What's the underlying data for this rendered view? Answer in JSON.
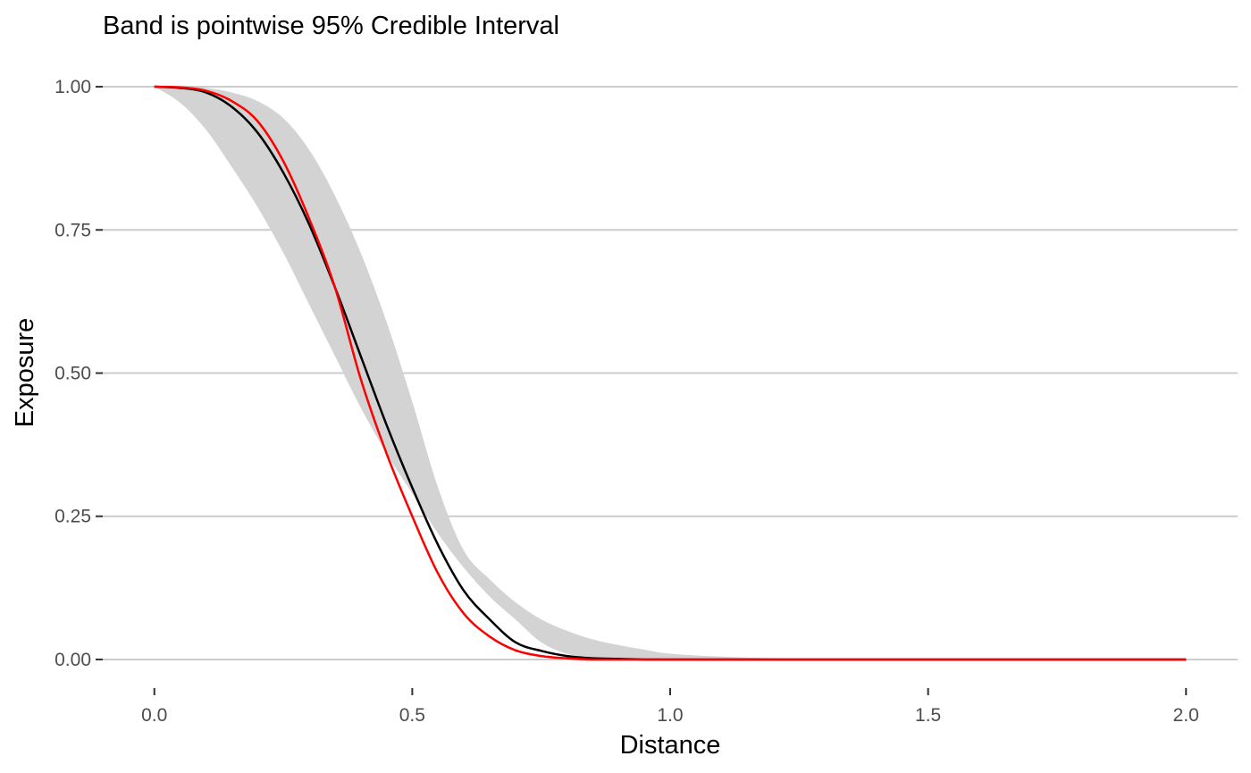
{
  "chart_data": {
    "type": "line",
    "title": "Band is pointwise 95% Credible Interval",
    "xlabel": "Distance",
    "ylabel": "Exposure",
    "xlim": [
      -0.1,
      2.1
    ],
    "ylim": [
      -0.05,
      1.05
    ],
    "x_ticks": [
      0.0,
      0.5,
      1.0,
      1.5,
      2.0
    ],
    "x_tick_labels": [
      "0.0",
      "0.5",
      "1.0",
      "1.5",
      "2.0"
    ],
    "y_ticks": [
      0.0,
      0.25,
      0.5,
      0.75,
      1.0
    ],
    "y_tick_labels": [
      "0.00",
      "0.25",
      "0.50",
      "0.75",
      "1.00"
    ],
    "grid": "horizontal-major",
    "x": [
      0,
      0.05,
      0.1,
      0.15,
      0.2,
      0.25,
      0.3,
      0.35,
      0.4,
      0.45,
      0.5,
      0.55,
      0.6,
      0.65,
      0.7,
      0.75,
      0.8,
      0.85,
      0.9,
      0.95,
      1.0,
      1.1,
      1.2,
      1.3,
      1.4,
      1.5,
      1.6,
      1.7,
      1.8,
      1.9,
      2.0
    ],
    "band": {
      "lower": [
        1.0,
        0.972,
        0.925,
        0.86,
        0.79,
        0.71,
        0.62,
        0.53,
        0.44,
        0.36,
        0.29,
        0.22,
        0.16,
        0.11,
        0.07,
        0.03,
        0.01,
        0.003,
        0.001,
        0.0,
        0.0,
        0.0,
        0.0,
        0.0,
        0.0,
        0.0,
        0.0,
        0.0,
        0.0,
        0.0,
        0.0
      ],
      "upper": [
        1.0,
        1.0,
        0.998,
        0.99,
        0.975,
        0.945,
        0.89,
        0.81,
        0.71,
        0.59,
        0.45,
        0.3,
        0.19,
        0.14,
        0.1,
        0.07,
        0.05,
        0.035,
        0.025,
        0.017,
        0.01,
        0.005,
        0.002,
        0.0,
        0.0,
        0.0,
        0.0,
        0.0,
        0.0,
        0.0,
        0.0
      ],
      "color": "#d3d3d3"
    },
    "series": [
      {
        "values": [
          1.0,
          0.998,
          0.99,
          0.965,
          0.92,
          0.85,
          0.76,
          0.65,
          0.53,
          0.41,
          0.3,
          0.2,
          0.12,
          0.07,
          0.03,
          0.015,
          0.006,
          0.002,
          0.001,
          0.0,
          0.0,
          0.0,
          0.0,
          0.0,
          0.0,
          0.0,
          0.0,
          0.0,
          0.0,
          0.0,
          0.0
        ],
        "color": "#000000"
      },
      {
        "values": [
          1.0,
          0.999,
          0.993,
          0.975,
          0.94,
          0.87,
          0.77,
          0.65,
          0.49,
          0.36,
          0.25,
          0.15,
          0.08,
          0.04,
          0.016,
          0.006,
          0.002,
          0.0,
          0.0,
          0.0,
          0.0,
          0.0,
          0.0,
          0.0,
          0.0,
          0.0,
          0.0,
          0.0,
          0.0,
          0.0,
          0.0
        ],
        "color": "#ff0000"
      }
    ]
  }
}
